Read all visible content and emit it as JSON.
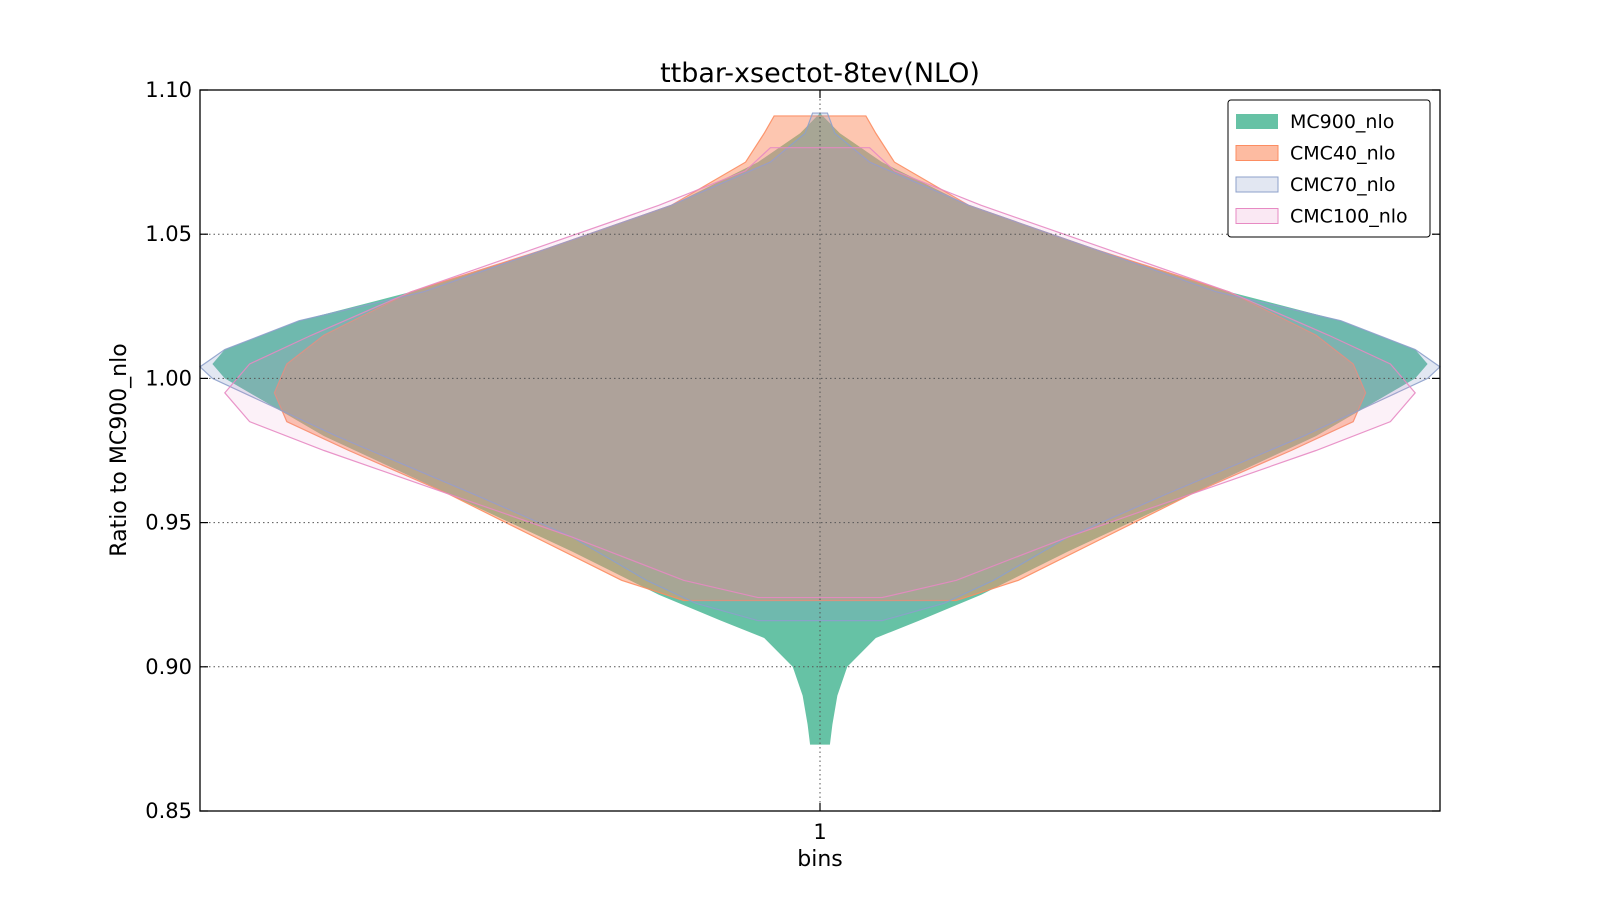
{
  "chart_data": {
    "type": "violin",
    "title": "ttbar-xsectot-8tev(NLO)",
    "xlabel": "bins",
    "ylabel": "Ratio to MC900_nlo",
    "categories": [
      "1"
    ],
    "ylim": [
      0.85,
      1.1
    ],
    "yticks": [
      "0.85",
      "0.90",
      "0.95",
      "1.00",
      "1.05",
      "1.10"
    ],
    "grid": true,
    "legend_position": "top-right",
    "series": [
      {
        "name": "MC900_nlo",
        "color": "#66c2a5",
        "alpha": 1.0,
        "max_width": 0.42,
        "profile": [
          [
            0.873,
            0.008
          ],
          [
            0.88,
            0.01
          ],
          [
            0.89,
            0.014
          ],
          [
            0.9,
            0.022
          ],
          [
            0.91,
            0.045
          ],
          [
            0.916,
            0.08
          ],
          [
            0.925,
            0.13
          ],
          [
            0.94,
            0.2
          ],
          [
            0.96,
            0.3
          ],
          [
            0.98,
            0.4
          ],
          [
            0.99,
            0.44
          ],
          [
            1.0,
            0.48
          ],
          [
            1.005,
            0.49
          ],
          [
            1.01,
            0.48
          ],
          [
            1.02,
            0.42
          ],
          [
            1.03,
            0.33
          ],
          [
            1.045,
            0.22
          ],
          [
            1.06,
            0.12
          ],
          [
            1.075,
            0.05
          ],
          [
            1.085,
            0.016
          ],
          [
            1.092,
            0.0
          ]
        ]
      },
      {
        "name": "CMC40_nlo",
        "color": "#fc8d62",
        "alpha": 0.5,
        "max_width": 0.42,
        "profile": [
          [
            0.923,
            0.11
          ],
          [
            0.93,
            0.16
          ],
          [
            0.945,
            0.23
          ],
          [
            0.96,
            0.3
          ],
          [
            0.975,
            0.38
          ],
          [
            0.985,
            0.43
          ],
          [
            0.995,
            0.44
          ],
          [
            1.005,
            0.43
          ],
          [
            1.015,
            0.4
          ],
          [
            1.03,
            0.33
          ],
          [
            1.045,
            0.22
          ],
          [
            1.06,
            0.12
          ],
          [
            1.075,
            0.06
          ],
          [
            1.085,
            0.045
          ],
          [
            1.091,
            0.037
          ]
        ]
      },
      {
        "name": "CMC70_nlo",
        "color": "#8da0cb",
        "alpha": 0.25,
        "max_width": 0.45,
        "profile": [
          [
            0.916,
            0.05
          ],
          [
            0.922,
            0.1
          ],
          [
            0.93,
            0.14
          ],
          [
            0.945,
            0.2
          ],
          [
            0.96,
            0.28
          ],
          [
            0.98,
            0.39
          ],
          [
            0.99,
            0.44
          ],
          [
            1.0,
            0.49
          ],
          [
            1.004,
            0.5
          ],
          [
            1.01,
            0.48
          ],
          [
            1.02,
            0.42
          ],
          [
            1.03,
            0.32
          ],
          [
            1.045,
            0.22
          ],
          [
            1.06,
            0.12
          ],
          [
            1.075,
            0.04
          ],
          [
            1.085,
            0.012
          ],
          [
            1.092,
            0.006
          ]
        ]
      },
      {
        "name": "CMC100_nlo",
        "color": "#e78ac3",
        "alpha": 0.12,
        "max_width": 0.45,
        "profile": [
          [
            0.924,
            0.05
          ],
          [
            0.93,
            0.11
          ],
          [
            0.945,
            0.2
          ],
          [
            0.96,
            0.3
          ],
          [
            0.975,
            0.4
          ],
          [
            0.985,
            0.46
          ],
          [
            0.995,
            0.48
          ],
          [
            1.005,
            0.46
          ],
          [
            1.015,
            0.41
          ],
          [
            1.03,
            0.33
          ],
          [
            1.045,
            0.23
          ],
          [
            1.06,
            0.13
          ],
          [
            1.072,
            0.06
          ],
          [
            1.08,
            0.04
          ]
        ]
      }
    ]
  }
}
